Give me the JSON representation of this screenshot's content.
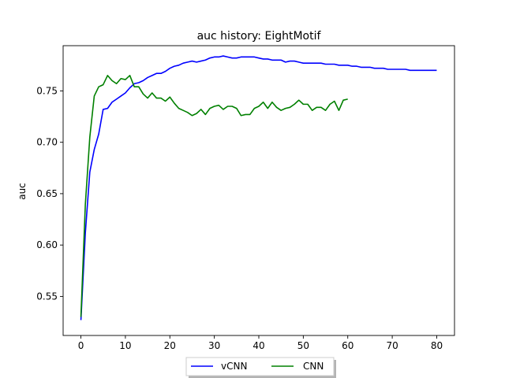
{
  "chart_data": {
    "type": "line",
    "title": "auc history:  EightMotif",
    "xlabel": "",
    "ylabel": "auc",
    "xlim": [
      -4,
      84
    ],
    "ylim": [
      0.512,
      0.794
    ],
    "xticks": [
      0,
      10,
      20,
      30,
      40,
      50,
      60,
      70,
      80
    ],
    "yticks": [
      0.55,
      0.6,
      0.65,
      0.7,
      0.75
    ],
    "grid": false,
    "legend_position": "bottom-center",
    "series": [
      {
        "name": "vCNN",
        "color": "#0000ff",
        "x": [
          0,
          1,
          2,
          3,
          4,
          5,
          6,
          7,
          8,
          9,
          10,
          11,
          12,
          13,
          14,
          15,
          16,
          17,
          18,
          19,
          20,
          21,
          22,
          23,
          24,
          25,
          26,
          27,
          28,
          29,
          30,
          31,
          32,
          33,
          34,
          35,
          36,
          37,
          38,
          39,
          40,
          41,
          42,
          43,
          44,
          45,
          46,
          47,
          48,
          49,
          50,
          51,
          52,
          53,
          54,
          55,
          56,
          57,
          58,
          59,
          60,
          61,
          62,
          63,
          64,
          65,
          66,
          67,
          68,
          69,
          70,
          71,
          72,
          73,
          74,
          75,
          76,
          77,
          78,
          79,
          80
        ],
        "values": [
          0.527,
          0.612,
          0.671,
          0.693,
          0.708,
          0.732,
          0.733,
          0.739,
          0.742,
          0.745,
          0.748,
          0.753,
          0.757,
          0.758,
          0.76,
          0.763,
          0.765,
          0.767,
          0.767,
          0.769,
          0.772,
          0.774,
          0.775,
          0.777,
          0.778,
          0.779,
          0.778,
          0.779,
          0.78,
          0.782,
          0.783,
          0.783,
          0.784,
          0.783,
          0.782,
          0.782,
          0.783,
          0.783,
          0.783,
          0.783,
          0.782,
          0.781,
          0.781,
          0.78,
          0.78,
          0.78,
          0.778,
          0.779,
          0.779,
          0.778,
          0.777,
          0.777,
          0.777,
          0.777,
          0.777,
          0.776,
          0.776,
          0.776,
          0.775,
          0.775,
          0.775,
          0.774,
          0.774,
          0.773,
          0.773,
          0.773,
          0.772,
          0.772,
          0.772,
          0.771,
          0.771,
          0.771,
          0.771,
          0.771,
          0.77,
          0.77,
          0.77,
          0.77,
          0.77,
          0.77,
          0.77
        ]
      },
      {
        "name": "CNN",
        "color": "#008000",
        "x": [
          0,
          1,
          2,
          3,
          4,
          5,
          6,
          7,
          8,
          9,
          10,
          11,
          12,
          13,
          14,
          15,
          16,
          17,
          18,
          19,
          20,
          21,
          22,
          23,
          24,
          25,
          26,
          27,
          28,
          29,
          30,
          31,
          32,
          33,
          34,
          35,
          36,
          37,
          38,
          39,
          40,
          41,
          42,
          43,
          44,
          45,
          46,
          47,
          48,
          49,
          50,
          51,
          52,
          53,
          54,
          55,
          56,
          57,
          58,
          59,
          60
        ],
        "values": [
          0.53,
          0.64,
          0.705,
          0.745,
          0.754,
          0.756,
          0.765,
          0.76,
          0.757,
          0.762,
          0.761,
          0.765,
          0.754,
          0.754,
          0.747,
          0.743,
          0.748,
          0.743,
          0.743,
          0.74,
          0.744,
          0.738,
          0.733,
          0.731,
          0.729,
          0.726,
          0.728,
          0.732,
          0.727,
          0.733,
          0.735,
          0.736,
          0.732,
          0.735,
          0.735,
          0.733,
          0.726,
          0.727,
          0.727,
          0.733,
          0.735,
          0.739,
          0.733,
          0.739,
          0.734,
          0.731,
          0.733,
          0.734,
          0.737,
          0.741,
          0.737,
          0.737,
          0.731,
          0.734,
          0.734,
          0.731,
          0.737,
          0.74,
          0.731,
          0.741,
          0.742
        ]
      }
    ]
  }
}
